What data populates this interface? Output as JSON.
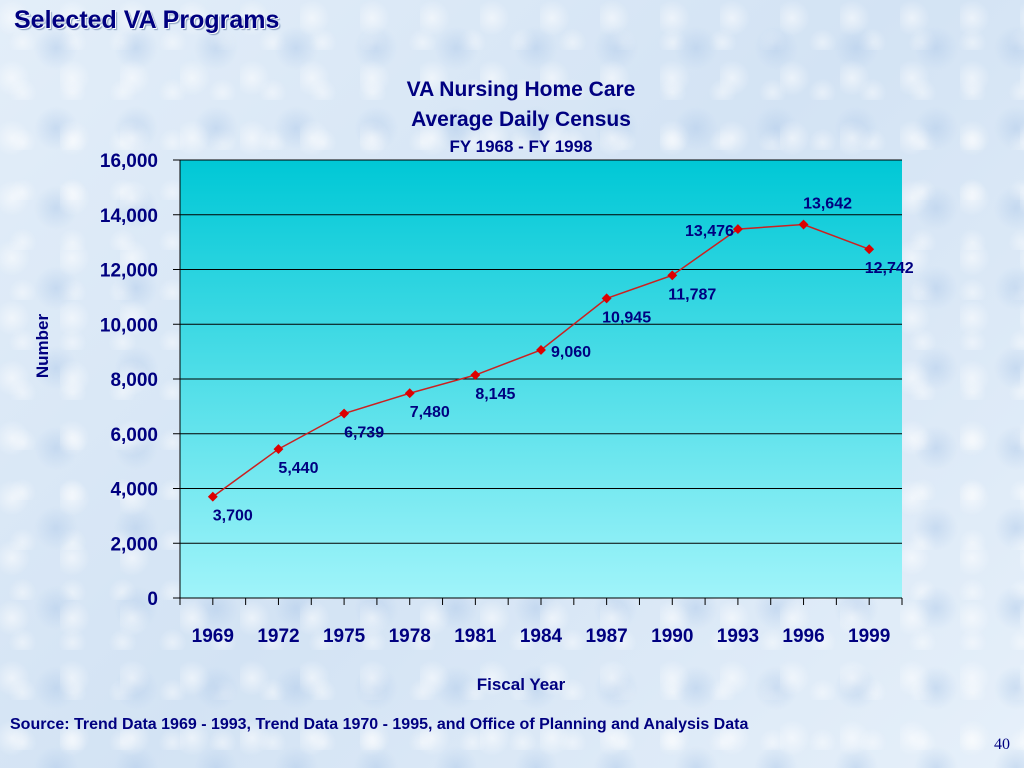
{
  "slide": {
    "title": "Selected VA Programs",
    "source": "Source:  Trend Data 1969 - 1993, Trend Data 1970 - 1995, and  Office of Planning and Analysis Data",
    "page_number": "40"
  },
  "colors": {
    "text": "#000080",
    "plot_top": "#00c8d6",
    "plot_bottom": "#a0f4fa",
    "line": "#cc2020",
    "marker": "#dd0000"
  },
  "chart_data": {
    "type": "line",
    "title": "VA Nursing Home Care",
    "title_line2": "Average Daily Census",
    "subtitle": "FY 1968 - FY 1998",
    "xlabel": "Fiscal Year",
    "ylabel": "Number",
    "ylim": [
      0,
      16000
    ],
    "yticks": [
      0,
      2000,
      4000,
      6000,
      8000,
      10000,
      12000,
      14000,
      16000
    ],
    "ytick_labels": [
      "0",
      "2,000",
      "4,000",
      "6,000",
      "8,000",
      "10,000",
      "12,000",
      "14,000",
      "16,000"
    ],
    "xlim": [
      1967.5,
      2000.5
    ],
    "xticks": [
      1969,
      1972,
      1975,
      1978,
      1981,
      1984,
      1987,
      1990,
      1993,
      1996,
      1999
    ],
    "xtick_labels": [
      "1969",
      "1972",
      "1975",
      "1978",
      "1981",
      "1984",
      "1987",
      "1990",
      "1993",
      "1996",
      "1999"
    ],
    "grid": true,
    "series": [
      {
        "x": [
          1969,
          1972,
          1975,
          1978,
          1981,
          1984,
          1987,
          1990,
          1993,
          1996,
          1999
        ],
        "values": [
          3700,
          5440,
          6739,
          7480,
          8145,
          9060,
          10945,
          11787,
          13476,
          13642,
          12742
        ],
        "labels": [
          "3,700",
          "5,440",
          "6,739",
          "7,480",
          "8,145",
          "9,060",
          "10,945",
          "11,787",
          "13,476",
          "13,642",
          "12,742"
        ],
        "label_positions": [
          "below",
          "below",
          "below",
          "below",
          "below",
          "right",
          "below",
          "below",
          "left",
          "above",
          "below"
        ]
      }
    ]
  }
}
